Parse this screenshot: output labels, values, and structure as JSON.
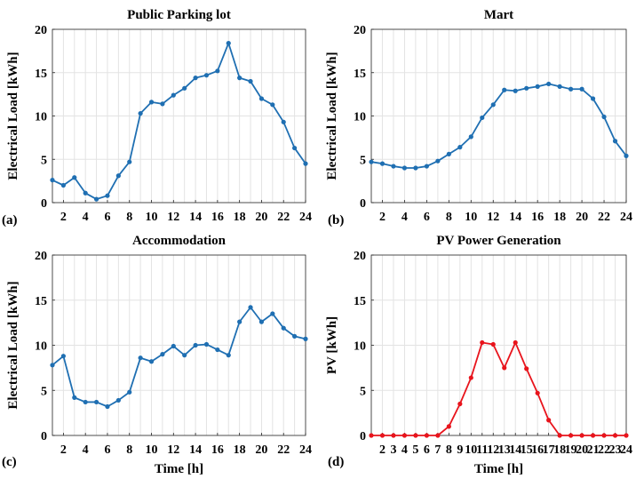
{
  "chart_data": [
    {
      "type": "line",
      "panel_label": "(a)",
      "title": "Public Parking lot",
      "xlabel": "",
      "ylabel": "Electrical Load [kWh]",
      "xlim": [
        1,
        24
      ],
      "ylim": [
        0,
        20
      ],
      "xticks": [
        2,
        4,
        6,
        8,
        10,
        12,
        14,
        16,
        18,
        20,
        22,
        24
      ],
      "yticks": [
        0,
        5,
        10,
        15,
        20
      ],
      "grid": true,
      "color": "#1f6fb2",
      "x": [
        1,
        2,
        3,
        4,
        5,
        6,
        7,
        8,
        9,
        10,
        11,
        12,
        13,
        14,
        15,
        16,
        17,
        18,
        19,
        20,
        21,
        22,
        23,
        24
      ],
      "values": [
        2.6,
        2.0,
        2.9,
        1.1,
        0.4,
        0.8,
        3.1,
        4.7,
        10.3,
        11.6,
        11.4,
        12.4,
        13.2,
        14.4,
        14.7,
        15.2,
        18.4,
        14.4,
        14.0,
        12.0,
        11.3,
        9.3,
        6.3,
        4.5
      ]
    },
    {
      "type": "line",
      "panel_label": "(b)",
      "title": "Mart",
      "xlabel": "",
      "ylabel": "Electrical Load [kWh]",
      "xlim": [
        1,
        24
      ],
      "ylim": [
        0,
        20
      ],
      "xticks": [
        2,
        4,
        6,
        8,
        10,
        12,
        14,
        16,
        18,
        20,
        22,
        24
      ],
      "yticks": [
        0,
        5,
        10,
        15,
        20
      ],
      "grid": true,
      "color": "#1f6fb2",
      "x": [
        1,
        2,
        3,
        4,
        5,
        6,
        7,
        8,
        9,
        10,
        11,
        12,
        13,
        14,
        15,
        16,
        17,
        18,
        19,
        20,
        21,
        22,
        23,
        24
      ],
      "values": [
        4.7,
        4.5,
        4.2,
        4.0,
        4.0,
        4.2,
        4.8,
        5.6,
        6.4,
        7.6,
        9.8,
        11.3,
        13.0,
        12.9,
        13.2,
        13.4,
        13.7,
        13.4,
        13.1,
        13.1,
        12.0,
        9.9,
        7.1,
        5.4
      ]
    },
    {
      "type": "line",
      "panel_label": "(c)",
      "title": "Accommodation",
      "xlabel": "Time [h]",
      "ylabel": "Electrical Load [kWh]",
      "xlim": [
        1,
        24
      ],
      "ylim": [
        0,
        20
      ],
      "xticks": [
        2,
        4,
        6,
        8,
        10,
        12,
        14,
        16,
        18,
        20,
        22,
        24
      ],
      "yticks": [
        0,
        5,
        10,
        15,
        20
      ],
      "grid": true,
      "color": "#1f6fb2",
      "x": [
        1,
        2,
        3,
        4,
        5,
        6,
        7,
        8,
        9,
        10,
        11,
        12,
        13,
        14,
        15,
        16,
        17,
        18,
        19,
        20,
        21,
        22,
        23,
        24
      ],
      "values": [
        7.8,
        8.8,
        4.2,
        3.7,
        3.7,
        3.2,
        3.9,
        4.8,
        8.6,
        8.2,
        9.0,
        9.9,
        8.9,
        10.0,
        10.1,
        9.5,
        8.9,
        12.6,
        14.2,
        12.6,
        13.5,
        11.9,
        11.0,
        10.7
      ]
    },
    {
      "type": "line",
      "panel_label": "(d)",
      "title": "PV Power Generation",
      "xlabel": "Time [h]",
      "ylabel": "PV [kWh]",
      "xlim": [
        1,
        24
      ],
      "ylim": [
        0,
        20
      ],
      "xticks": [
        2,
        3,
        4,
        5,
        6,
        7,
        8,
        9,
        10,
        11,
        12,
        13,
        14,
        15,
        16,
        17,
        18,
        19,
        20,
        21,
        22,
        23,
        24
      ],
      "yticks": [
        0,
        5,
        10,
        15,
        20
      ],
      "grid": true,
      "color": "#e8141c",
      "x": [
        1,
        2,
        3,
        4,
        5,
        6,
        7,
        8,
        9,
        10,
        11,
        12,
        13,
        14,
        15,
        16,
        17,
        18,
        19,
        20,
        21,
        22,
        23,
        24
      ],
      "values": [
        0,
        0,
        0,
        0,
        0,
        0,
        0,
        1.0,
        3.5,
        6.4,
        10.3,
        10.1,
        7.5,
        10.3,
        7.4,
        4.7,
        1.7,
        0,
        0,
        0,
        0,
        0,
        0,
        0
      ]
    }
  ]
}
